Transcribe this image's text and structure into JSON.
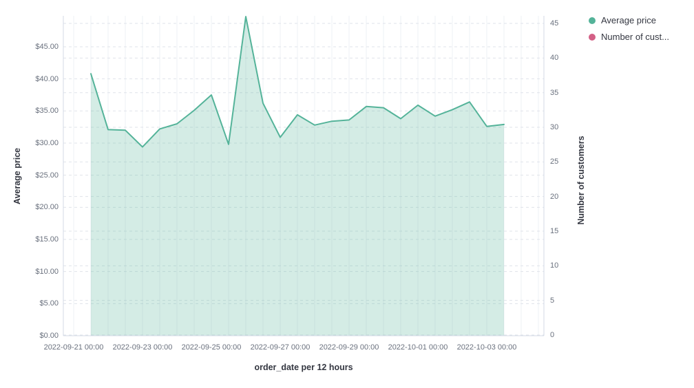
{
  "page": {
    "background": "#ffffff",
    "text_color": "#343741",
    "tick_color": "#69707d"
  },
  "legend": {
    "position": "top-right",
    "items": [
      {
        "label": "Average price",
        "color": "#54B399",
        "icon": "legend-dot"
      },
      {
        "label": "Number of cust...",
        "color": "#D36086",
        "icon": "legend-dot"
      }
    ]
  },
  "chart_data": {
    "type": "area",
    "title": "",
    "xlabel": "order_date per 12 hours",
    "ylabel_left": "Average price",
    "ylabel_right": "Number of customers",
    "x_tick_labels": [
      "2022-09-21 00:00",
      "2022-09-23 00:00",
      "2022-09-25 00:00",
      "2022-09-27 00:00",
      "2022-09-29 00:00",
      "2022-10-01 00:00",
      "2022-10-03 00:00"
    ],
    "y_left_tick_labels": [
      "$0.00",
      "$5.00",
      "$10.00",
      "$15.00",
      "$20.00",
      "$25.00",
      "$30.00",
      "$35.00",
      "$40.00",
      "$45.00"
    ],
    "y_right_tick_labels": [
      "0",
      "5",
      "10",
      "15",
      "20",
      "25",
      "30",
      "35",
      "40",
      "45"
    ],
    "ylim_left": [
      0,
      49.8
    ],
    "ylim_right": [
      0,
      46.2
    ],
    "grid": {
      "horizontal": "dashed",
      "vertical": "solid",
      "h_color": "#dfe3ea",
      "v_color": "#eef0f4",
      "axis_line_color": "#d3dae6"
    },
    "interval": "12 hours",
    "series": [
      {
        "name": "Average price",
        "axis": "left",
        "color": "#54B399",
        "fill_opacity": 0.25,
        "x": [
          "2022-09-21 12:00",
          "2022-09-22 00:00",
          "2022-09-22 12:00",
          "2022-09-23 00:00",
          "2022-09-23 12:00",
          "2022-09-24 00:00",
          "2022-09-24 12:00",
          "2022-09-25 00:00",
          "2022-09-25 12:00",
          "2022-09-26 00:00",
          "2022-09-26 12:00",
          "2022-09-27 00:00",
          "2022-09-27 12:00",
          "2022-09-28 00:00",
          "2022-09-28 12:00",
          "2022-09-29 00:00",
          "2022-09-29 12:00",
          "2022-09-30 00:00",
          "2022-09-30 12:00",
          "2022-10-01 00:00",
          "2022-10-01 12:00",
          "2022-10-02 00:00",
          "2022-10-02 12:00",
          "2022-10-03 00:00",
          "2022-10-03 12:00"
        ],
        "values": [
          40.8,
          32.1,
          32.0,
          29.4,
          32.2,
          33.0,
          35.1,
          37.5,
          29.8,
          49.7,
          36.2,
          30.9,
          34.4,
          32.8,
          33.4,
          33.6,
          35.7,
          35.5,
          33.8,
          35.9,
          34.2,
          35.2,
          36.4,
          32.6,
          32.9
        ]
      },
      {
        "name": "Number of cust...",
        "axis": "right",
        "color": "#D36086",
        "values": []
      }
    ]
  }
}
